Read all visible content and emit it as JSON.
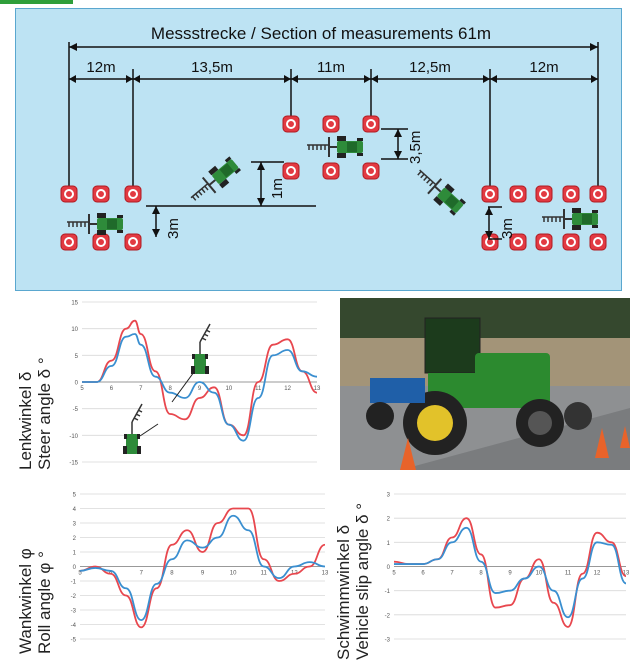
{
  "diagram": {
    "title": "Messstrecke / Section of measurements 61m",
    "segments": [
      "12m",
      "13,5m",
      "11m",
      "12,5m",
      "12m"
    ],
    "offsets": [
      "3m",
      "1m",
      "3,5m",
      "3m"
    ]
  },
  "colors": {
    "panel_bg": "#bde3f3",
    "panel_border": "#5aa7cf",
    "cone": "#e0303a",
    "tractor": "#2e8b3a",
    "series_measured": "#e8474e",
    "series_simulated": "#3a8fd0"
  },
  "icons": [
    "tractor-icon",
    "cone-icon",
    "tractor-with-rake-icon"
  ],
  "charts": [
    {
      "id": "steer",
      "ylabel_lines": [
        "Lenkwinkel δ",
        "Steer angle δ °"
      ],
      "y_ticks": [
        "15",
        "10",
        "5",
        "0",
        "-5",
        "-10",
        "-15"
      ],
      "x_ticks": [
        "5",
        "6",
        "7",
        "8",
        "9",
        "10",
        "11",
        "12",
        "13"
      ]
    },
    {
      "id": "roll",
      "ylabel_lines": [
        "Wankwinkel φ",
        "Roll angle φ °"
      ],
      "y_ticks": [
        "5",
        "4",
        "3",
        "2",
        "1",
        "0",
        "-1",
        "-2",
        "-3",
        "-4",
        "-5"
      ],
      "x_ticks": [
        "5",
        "6",
        "7",
        "8",
        "9",
        "10",
        "11",
        "12",
        "13"
      ]
    },
    {
      "id": "slip",
      "ylabel_lines": [
        "Schwimmwinkel δ",
        "Vehicle slip angle δ °"
      ],
      "y_ticks": [
        "3",
        "2",
        "1",
        "0",
        "-1",
        "-2",
        "-3"
      ],
      "x_ticks": [
        "5",
        "6",
        "7",
        "8",
        "9",
        "10",
        "11",
        "12",
        "13"
      ]
    }
  ],
  "chart_data": [
    {
      "type": "line",
      "x": [
        5,
        5.5,
        6,
        6.5,
        6.8,
        7,
        7.5,
        8,
        8.5,
        9,
        9.5,
        10,
        10.5,
        11,
        11.5,
        12,
        12.5,
        13
      ],
      "ylim": [
        -15,
        15
      ],
      "xlim": [
        5,
        13
      ],
      "series": [
        {
          "values": [
            0,
            0,
            4,
            10,
            11.5,
            9,
            2,
            -6,
            -7,
            -3,
            -1,
            -8,
            -10,
            0,
            7,
            8,
            2,
            -2
          ]
        },
        {
          "values": [
            0,
            0,
            3,
            8.5,
            9,
            7,
            1,
            -2,
            -3,
            0,
            -2,
            -8,
            -11,
            -3,
            5,
            6,
            2,
            1
          ]
        }
      ]
    },
    {
      "type": "line",
      "x": [
        5,
        5.5,
        6,
        6.5,
        7,
        7.5,
        8,
        8.5,
        9,
        9.5,
        10,
        10.5,
        11,
        11.5,
        12,
        12.5,
        13
      ],
      "ylim": [
        -5,
        5
      ],
      "xlim": [
        5,
        13
      ],
      "series": [
        {
          "values": [
            -0.3,
            0,
            -0.5,
            -2,
            -4.2,
            -1.5,
            1.5,
            2.5,
            1,
            3,
            4,
            4,
            0.5,
            -1,
            -0.5,
            0,
            1.5
          ]
        },
        {
          "values": [
            -0.3,
            -0.1,
            -0.3,
            -1.5,
            -3.7,
            -1.2,
            0.5,
            1.8,
            1.3,
            2,
            3.5,
            2.5,
            0,
            -0.8,
            0,
            0.3,
            0
          ]
        }
      ]
    },
    {
      "type": "line",
      "x": [
        5,
        5.5,
        6,
        6.5,
        7,
        7.5,
        8,
        8.5,
        9,
        9.5,
        10,
        10.5,
        11,
        11.5,
        12,
        12.5,
        13
      ],
      "ylim": [
        -3,
        3
      ],
      "xlim": [
        5,
        13
      ],
      "series": [
        {
          "values": [
            0.2,
            0.1,
            0.1,
            0.3,
            1.2,
            2,
            0.5,
            -1.7,
            -1.6,
            -0.5,
            0.3,
            -1.5,
            -2.5,
            -0.3,
            1.4,
            1,
            -0.4
          ]
        },
        {
          "values": [
            0.1,
            0.1,
            0.1,
            0.3,
            1.0,
            1.6,
            0.2,
            -1.1,
            -1,
            -0.5,
            0,
            -1,
            -2.1,
            -0.5,
            1,
            0.9,
            -0.7
          ]
        }
      ]
    }
  ]
}
